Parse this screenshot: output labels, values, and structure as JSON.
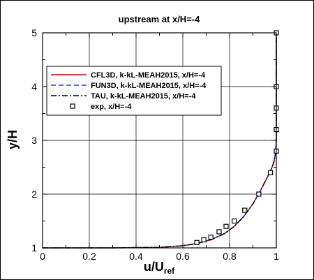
{
  "chart_data": {
    "type": "line",
    "title": "upstream at x/H=-4",
    "xlabel": "u/U",
    "xlabel_sub": "ref",
    "ylabel": "y/H",
    "xlim": [
      0,
      1
    ],
    "ylim": [
      1,
      5
    ],
    "xticks": [
      0,
      0.2,
      0.4,
      0.6,
      0.8,
      1
    ],
    "xtick_labels": [
      "0",
      "0.2",
      "0.4",
      "0.6",
      "0.8",
      "1"
    ],
    "yticks": [
      1,
      2,
      3,
      4,
      5
    ],
    "ytick_labels": [
      "1",
      "2",
      "3",
      "4",
      "5"
    ],
    "grid": true,
    "legend_placement": "upper-left",
    "series": [
      {
        "name": "CFL3D, k-kL-MEAH2015, x/H=-4",
        "style": "solid",
        "color": "#cc0000",
        "x": [
          0,
          0.3,
          0.5,
          0.6,
          0.66,
          0.72,
          0.78,
          0.82,
          0.86,
          0.9,
          0.93,
          0.96,
          0.98,
          0.99,
          0.996,
          1,
          1,
          1
        ],
        "y": [
          1,
          1,
          1.01,
          1.04,
          1.08,
          1.15,
          1.27,
          1.4,
          1.58,
          1.82,
          2.05,
          2.3,
          2.48,
          2.6,
          2.75,
          3,
          4,
          5
        ]
      },
      {
        "name": "FUN3D, k-kL-MEAH2015, x/H=-4",
        "style": "dashed",
        "color": "#3333ff",
        "x": [
          0,
          0.3,
          0.5,
          0.6,
          0.66,
          0.72,
          0.78,
          0.82,
          0.86,
          0.9,
          0.93,
          0.96,
          0.98,
          0.99,
          0.996,
          1,
          1,
          1
        ],
        "y": [
          1,
          1,
          1.01,
          1.04,
          1.08,
          1.15,
          1.27,
          1.4,
          1.58,
          1.82,
          2.05,
          2.3,
          2.48,
          2.6,
          2.75,
          3,
          4,
          5
        ]
      },
      {
        "name": "TAU, k-kL-MEAH2015, x/H=-4",
        "style": "dashdot",
        "color": "#000000",
        "x": [
          0,
          0.3,
          0.5,
          0.6,
          0.66,
          0.72,
          0.78,
          0.82,
          0.86,
          0.9,
          0.93,
          0.96,
          0.98,
          0.99,
          0.996,
          1,
          1,
          1
        ],
        "y": [
          1,
          1,
          1.01,
          1.04,
          1.08,
          1.15,
          1.27,
          1.4,
          1.58,
          1.82,
          2.05,
          2.3,
          2.48,
          2.6,
          2.75,
          3,
          4,
          5
        ]
      },
      {
        "name": "exp, x/H=-4",
        "style": "marker-square",
        "color": "#000000",
        "x": [
          0.66,
          0.69,
          0.72,
          0.755,
          0.785,
          0.82,
          0.865,
          0.925,
          0.975,
          1,
          1,
          1,
          1,
          1
        ],
        "y": [
          1.1,
          1.15,
          1.2,
          1.3,
          1.4,
          1.5,
          1.7,
          2.0,
          2.4,
          2.8,
          3.2,
          3.6,
          4.0,
          5.0
        ]
      }
    ]
  }
}
